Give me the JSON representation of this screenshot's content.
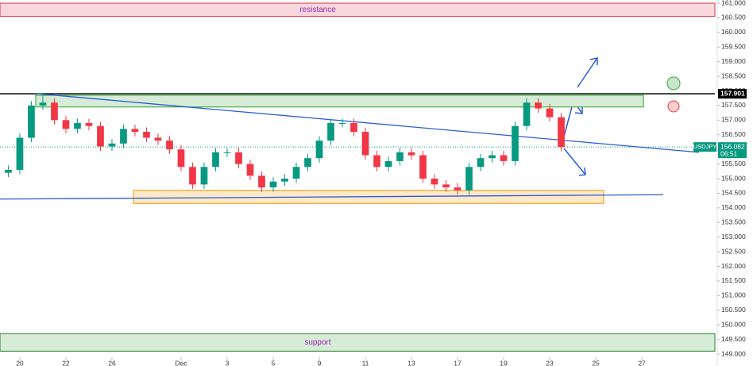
{
  "chart_data": {
    "type": "candlestick",
    "symbol": "USDJPY",
    "last_price": {
      "value": 156.082,
      "label": "156.082"
    },
    "countdown": "06:51",
    "level_line": {
      "value": 157.901,
      "label": "157.901"
    },
    "up_color": "#089981",
    "down_color": "#f23645",
    "x": [
      -0.5,
      0,
      0.5,
      1,
      1.5,
      2,
      2.5,
      3,
      3.5,
      4,
      4.5,
      5,
      5.5,
      6,
      6.5,
      7,
      7.5,
      8,
      8.5,
      9,
      9.5,
      10,
      10.5,
      11,
      11.5,
      12,
      12.5,
      13,
      13.5,
      14,
      14.5,
      15,
      15.5,
      16,
      16.5,
      17,
      17.5,
      18,
      18.5,
      19,
      19.5,
      20,
      20.5,
      21,
      21.5,
      22,
      22.5,
      23,
      23.5
    ],
    "open": [
      155.2,
      155.3,
      156.4,
      157.5,
      157.6,
      157.0,
      156.7,
      156.9,
      156.8,
      156.1,
      156.2,
      156.7,
      156.6,
      156.4,
      156.3,
      156.0,
      155.4,
      154.8,
      155.4,
      155.9,
      155.9,
      155.5,
      155.1,
      154.7,
      154.9,
      155.0,
      155.4,
      155.7,
      156.3,
      156.9,
      156.9,
      156.6,
      155.8,
      155.4,
      155.6,
      155.9,
      155.8,
      155.0,
      154.8,
      154.7,
      154.6,
      155.4,
      155.7,
      155.8,
      155.6,
      156.8,
      157.6,
      157.4,
      157.1
    ],
    "high": [
      155.45,
      156.55,
      157.65,
      157.9,
      157.75,
      157.15,
      157.05,
      157.05,
      156.95,
      156.35,
      156.85,
      156.85,
      156.75,
      156.55,
      156.45,
      156.15,
      155.55,
      155.55,
      156.05,
      156.05,
      156.05,
      155.65,
      155.25,
      155.05,
      155.15,
      155.55,
      155.85,
      156.45,
      157.05,
      157.05,
      157.05,
      156.75,
      155.95,
      155.75,
      156.05,
      156.05,
      155.95,
      155.15,
      154.95,
      154.85,
      155.55,
      155.85,
      155.95,
      155.95,
      156.95,
      157.75,
      157.75,
      157.55,
      157.25
    ],
    "low": [
      155.05,
      155.15,
      156.25,
      157.35,
      156.85,
      156.55,
      156.55,
      156.65,
      155.95,
      155.95,
      156.05,
      156.45,
      156.25,
      156.15,
      155.85,
      155.25,
      154.65,
      154.65,
      155.25,
      155.75,
      155.35,
      154.95,
      154.55,
      154.55,
      154.75,
      154.85,
      155.25,
      155.55,
      156.15,
      156.75,
      156.45,
      155.65,
      155.25,
      155.25,
      155.45,
      155.65,
      154.85,
      154.65,
      154.55,
      154.45,
      154.45,
      155.25,
      155.55,
      155.45,
      155.45,
      156.65,
      157.25,
      156.95,
      155.93
    ],
    "close": [
      155.3,
      156.4,
      157.5,
      157.6,
      157.0,
      156.7,
      156.9,
      156.8,
      156.1,
      156.2,
      156.7,
      156.6,
      156.4,
      156.3,
      156.0,
      155.4,
      154.8,
      155.4,
      155.9,
      155.9,
      155.5,
      155.1,
      154.7,
      154.9,
      155.0,
      155.4,
      155.7,
      156.3,
      156.9,
      156.9,
      156.6,
      155.8,
      155.4,
      155.6,
      155.9,
      155.8,
      155.0,
      154.8,
      154.7,
      154.6,
      155.4,
      155.7,
      155.8,
      155.6,
      156.8,
      157.6,
      157.4,
      157.1,
      156.08
    ],
    "zones": [
      {
        "label": "resistance",
        "x": [
          -0.86,
          30.17
        ],
        "y": [
          160.55,
          161.0
        ],
        "fill": "#f8d7dc",
        "stroke": "#e03040",
        "text_color": "#9c27b0"
      },
      {
        "label": "support",
        "x": [
          -0.86,
          30.17
        ],
        "y": [
          149.1,
          149.7
        ],
        "fill": "#d6ecd6",
        "stroke": "#2e7d32",
        "text_color": "#9c27b0"
      },
      {
        "x": [
          0.69,
          27.07
        ],
        "y": [
          157.45,
          157.85
        ],
        "fill": "#d6ecd6",
        "stroke": "#2e9e2e"
      },
      {
        "x": [
          4.93,
          25.345
        ],
        "y": [
          154.15,
          154.6
        ],
        "fill": "#fde8c8",
        "stroke": "#f29900"
      }
    ],
    "trend_lines": [
      {
        "x": [
          0.69,
          29.48
        ],
        "y": [
          157.91,
          155.9
        ],
        "color": "#2a5bd7"
      },
      {
        "x": [
          -0.86,
          27.93
        ],
        "y": [
          154.3,
          154.45
        ],
        "color": "#2a5bd7"
      }
    ],
    "xlim": [
      -0.86,
      30.17
    ],
    "ylim": [
      149,
      161
    ],
    "xticks": [
      {
        "value": 0,
        "label": "20"
      },
      {
        "value": 2,
        "label": "22"
      },
      {
        "value": 4,
        "label": "26"
      },
      {
        "value": 7,
        "label": "Dec"
      },
      {
        "value": 9,
        "label": "3"
      },
      {
        "value": 11,
        "label": "5"
      },
      {
        "value": 13,
        "label": "9"
      },
      {
        "value": 15,
        "label": "11"
      },
      {
        "value": 17,
        "label": "13"
      },
      {
        "value": 19,
        "label": "17"
      },
      {
        "value": 21,
        "label": "19"
      },
      {
        "value": 23,
        "label": "23"
      },
      {
        "value": 25,
        "label": "25"
      },
      {
        "value": 27,
        "label": "27"
      }
    ],
    "yticks": [
      {
        "value": 149,
        "label": "149.000"
      },
      {
        "value": 149.5,
        "label": "149.500"
      },
      {
        "value": 150,
        "label": "150.000"
      },
      {
        "value": 150.5,
        "label": "150.500"
      },
      {
        "value": 151,
        "label": "151.000"
      },
      {
        "value": 151.5,
        "label": "151.500"
      },
      {
        "value": 152,
        "label": "152.000"
      },
      {
        "value": 152.5,
        "label": "152.500"
      },
      {
        "value": 153,
        "label": "153.000"
      },
      {
        "value": 153.5,
        "label": "153.500"
      },
      {
        "value": 154,
        "label": "154.000"
      },
      {
        "value": 154.5,
        "label": "154.500"
      },
      {
        "value": 155,
        "label": "155.000"
      },
      {
        "value": 155.5,
        "label": "155.500"
      },
      {
        "value": 156,
        "label": "156.000"
      },
      {
        "value": 156.5,
        "label": "156.500"
      },
      {
        "value": 157,
        "label": "157.000"
      },
      {
        "value": 157.5,
        "label": "157.500"
      },
      {
        "value": 158,
        "label": "158.000"
      },
      {
        "value": 158.5,
        "label": "158.500"
      },
      {
        "value": 159,
        "label": "159.000"
      },
      {
        "value": 159.5,
        "label": "159.500"
      },
      {
        "value": 160,
        "label": "160.000"
      },
      {
        "value": 160.5,
        "label": "160.500"
      },
      {
        "value": 161,
        "label": "161.000"
      }
    ]
  }
}
